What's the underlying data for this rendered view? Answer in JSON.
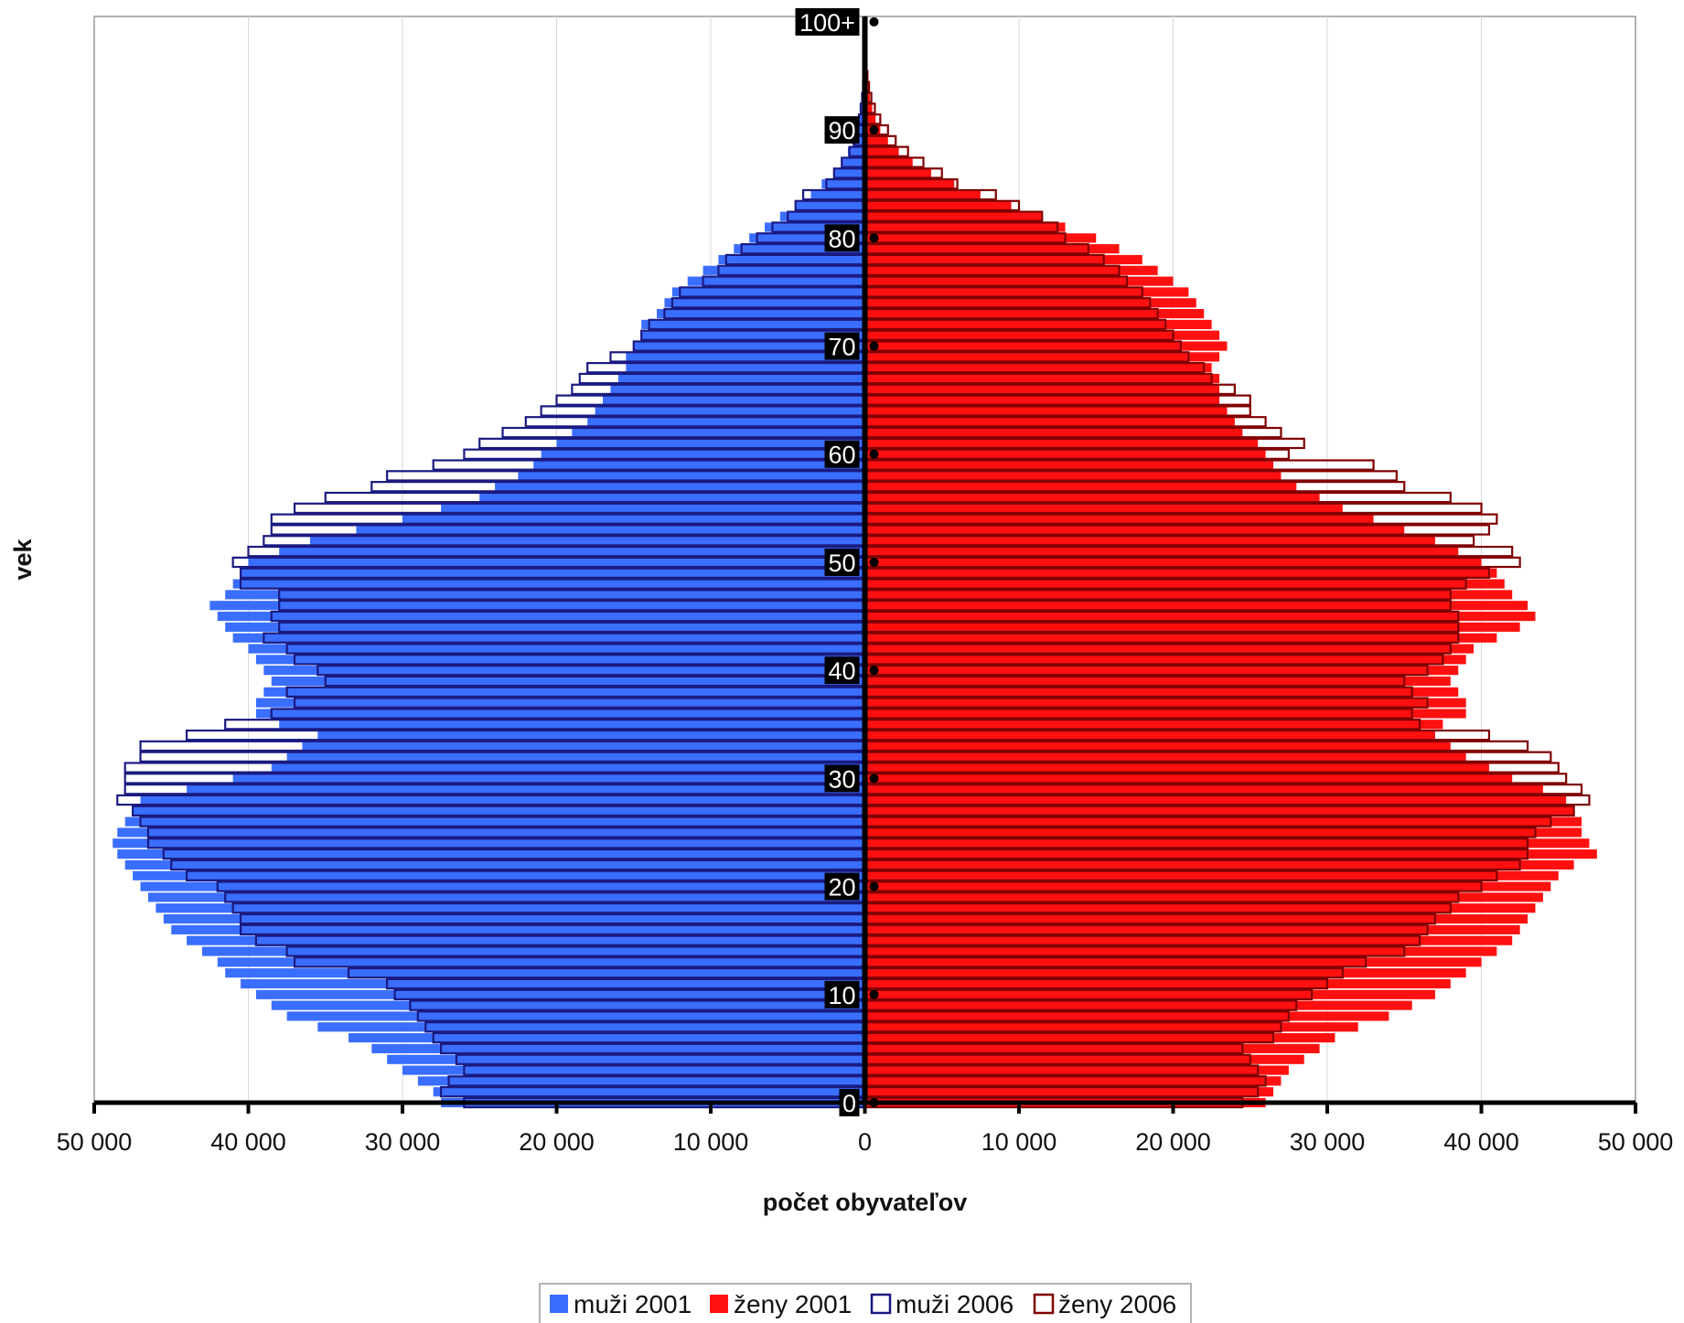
{
  "chart_data": {
    "type": "bar",
    "orientation": "horizontal population pyramid",
    "xlabel": "počet obyvateľov",
    "ylabel": "vek",
    "xlim": [
      -50000,
      50000
    ],
    "x_tick_labels": [
      "50 000",
      "40 000",
      "30 000",
      "20 000",
      "10 000",
      "0",
      "10 000",
      "20 000",
      "30 000",
      "40 000",
      "50 000"
    ],
    "x_tick_values": [
      -50000,
      -40000,
      -30000,
      -20000,
      -10000,
      0,
      10000,
      20000,
      30000,
      40000,
      50000
    ],
    "grid": "vertical gridlines",
    "age_labels": [
      "0",
      "10",
      "20",
      "30",
      "40",
      "50",
      "60",
      "70",
      "80",
      "90",
      "100+"
    ],
    "age_label_values": [
      0,
      10,
      20,
      30,
      40,
      50,
      60,
      70,
      80,
      90,
      100
    ],
    "categories": [
      "0",
      "1",
      "2",
      "3",
      "4",
      "5",
      "6",
      "7",
      "8",
      "9",
      "10",
      "11",
      "12",
      "13",
      "14",
      "15",
      "16",
      "17",
      "18",
      "19",
      "20",
      "21",
      "22",
      "23",
      "24",
      "25",
      "26",
      "27",
      "28",
      "29",
      "30",
      "31",
      "32",
      "33",
      "34",
      "35",
      "36",
      "37",
      "38",
      "39",
      "40",
      "41",
      "42",
      "43",
      "44",
      "45",
      "46",
      "47",
      "48",
      "49",
      "50",
      "51",
      "52",
      "53",
      "54",
      "55",
      "56",
      "57",
      "58",
      "59",
      "60",
      "61",
      "62",
      "63",
      "64",
      "65",
      "66",
      "67",
      "68",
      "69",
      "70",
      "71",
      "72",
      "73",
      "74",
      "75",
      "76",
      "77",
      "78",
      "79",
      "80",
      "81",
      "82",
      "83",
      "84",
      "85",
      "86",
      "87",
      "88",
      "89",
      "90",
      "91",
      "92",
      "93",
      "94",
      "95",
      "96",
      "97",
      "98",
      "99",
      "100+"
    ],
    "legend_position": "bottom",
    "series": [
      {
        "name": "muži 2001",
        "side": "left",
        "style": "filled",
        "color": "#3A6EFF",
        "values": [
          27500,
          28000,
          29000,
          30000,
          31000,
          32000,
          33500,
          35500,
          37500,
          38500,
          39500,
          40500,
          41500,
          42000,
          43000,
          44000,
          45000,
          45500,
          46000,
          46500,
          47000,
          47500,
          48000,
          48500,
          48800,
          48500,
          48000,
          47500,
          47000,
          44000,
          41000,
          38500,
          37500,
          36500,
          35500,
          38000,
          39500,
          39500,
          39000,
          38500,
          39000,
          39500,
          40000,
          41000,
          41500,
          42000,
          42500,
          41500,
          41000,
          40500,
          40000,
          38000,
          36000,
          33000,
          30000,
          27500,
          25000,
          24000,
          22500,
          21500,
          21000,
          20000,
          19000,
          18000,
          17500,
          17000,
          16500,
          16000,
          15500,
          15500,
          15000,
          14500,
          14500,
          13500,
          13000,
          12500,
          11500,
          10500,
          9500,
          8500,
          7500,
          6500,
          5500,
          4500,
          3500,
          2800,
          2000,
          1500,
          1100,
          800,
          600,
          450,
          320,
          220,
          150,
          100,
          60,
          40,
          25,
          15,
          20
        ]
      },
      {
        "name": "ženy 2001",
        "side": "right",
        "style": "filled",
        "color": "#FF1010",
        "values": [
          26000,
          26500,
          27000,
          27500,
          28500,
          29500,
          30500,
          32000,
          34000,
          35500,
          37000,
          38000,
          39000,
          40000,
          41000,
          42000,
          42500,
          43000,
          43500,
          44000,
          44500,
          45000,
          46000,
          47500,
          47000,
          46500,
          46500,
          46000,
          45500,
          44000,
          42000,
          40500,
          39000,
          38000,
          37000,
          37500,
          39000,
          39000,
          38500,
          38000,
          38500,
          39000,
          39500,
          41000,
          42500,
          43500,
          43000,
          42000,
          41500,
          41000,
          40000,
          38500,
          37000,
          35000,
          33000,
          31000,
          29500,
          28000,
          27000,
          26500,
          26000,
          25500,
          24500,
          24000,
          23500,
          23000,
          23000,
          23000,
          22500,
          23000,
          23500,
          23000,
          22500,
          22000,
          21500,
          21000,
          20000,
          19000,
          18000,
          16500,
          15000,
          13000,
          11500,
          9500,
          7500,
          5800,
          4300,
          3100,
          2200,
          1500,
          1000,
          700,
          480,
          330,
          220,
          140,
          90,
          55,
          35,
          20,
          25
        ]
      },
      {
        "name": "muži 2006",
        "side": "left",
        "style": "outline",
        "color": "#1A1A80",
        "values": [
          26000,
          27500,
          27000,
          26000,
          26500,
          27500,
          28000,
          28500,
          29000,
          29500,
          30500,
          31000,
          33500,
          37000,
          37500,
          39500,
          40500,
          40500,
          41000,
          41500,
          42000,
          44000,
          45000,
          45500,
          46500,
          46500,
          47000,
          47500,
          48500,
          48000,
          48000,
          48000,
          47000,
          47000,
          44000,
          41500,
          38500,
          37000,
          37500,
          35000,
          35500,
          37000,
          37500,
          39000,
          38000,
          38500,
          38000,
          38000,
          40500,
          40500,
          41000,
          40000,
          39000,
          38500,
          38500,
          37000,
          35000,
          32000,
          31000,
          28000,
          26000,
          25000,
          23500,
          22000,
          21000,
          20000,
          19000,
          18500,
          18000,
          16500,
          15000,
          14500,
          14000,
          13000,
          12500,
          12000,
          10500,
          9500,
          9000,
          8000,
          7000,
          6000,
          5000,
          4500,
          4000,
          2500,
          2000,
          1500,
          1000,
          700,
          500,
          380,
          270,
          180,
          120,
          80,
          50,
          30,
          20,
          10,
          15
        ]
      },
      {
        "name": "ženy 2006",
        "side": "right",
        "style": "outline",
        "color": "#800000",
        "values": [
          24500,
          25500,
          26000,
          25500,
          25000,
          24500,
          26500,
          27000,
          27500,
          28000,
          29000,
          30000,
          31000,
          32500,
          35000,
          36000,
          36500,
          37000,
          38000,
          38500,
          40000,
          41000,
          42500,
          43000,
          43000,
          43500,
          44500,
          46000,
          47000,
          46500,
          45500,
          45000,
          44500,
          43000,
          40500,
          36000,
          35500,
          36500,
          35500,
          35000,
          36500,
          37500,
          38000,
          38500,
          38500,
          38500,
          38000,
          38000,
          39000,
          40500,
          42500,
          42000,
          39500,
          40500,
          41000,
          40000,
          38000,
          35000,
          34500,
          33000,
          27500,
          28500,
          27000,
          26000,
          25000,
          25000,
          24000,
          22500,
          22000,
          21000,
          20500,
          20000,
          19500,
          19000,
          18500,
          18000,
          17000,
          16500,
          15500,
          14500,
          13000,
          12500,
          11500,
          10000,
          8500,
          6000,
          5000,
          3800,
          2800,
          2000,
          1500,
          1000,
          650,
          420,
          270,
          170,
          110,
          65,
          40,
          25,
          30
        ]
      }
    ]
  }
}
